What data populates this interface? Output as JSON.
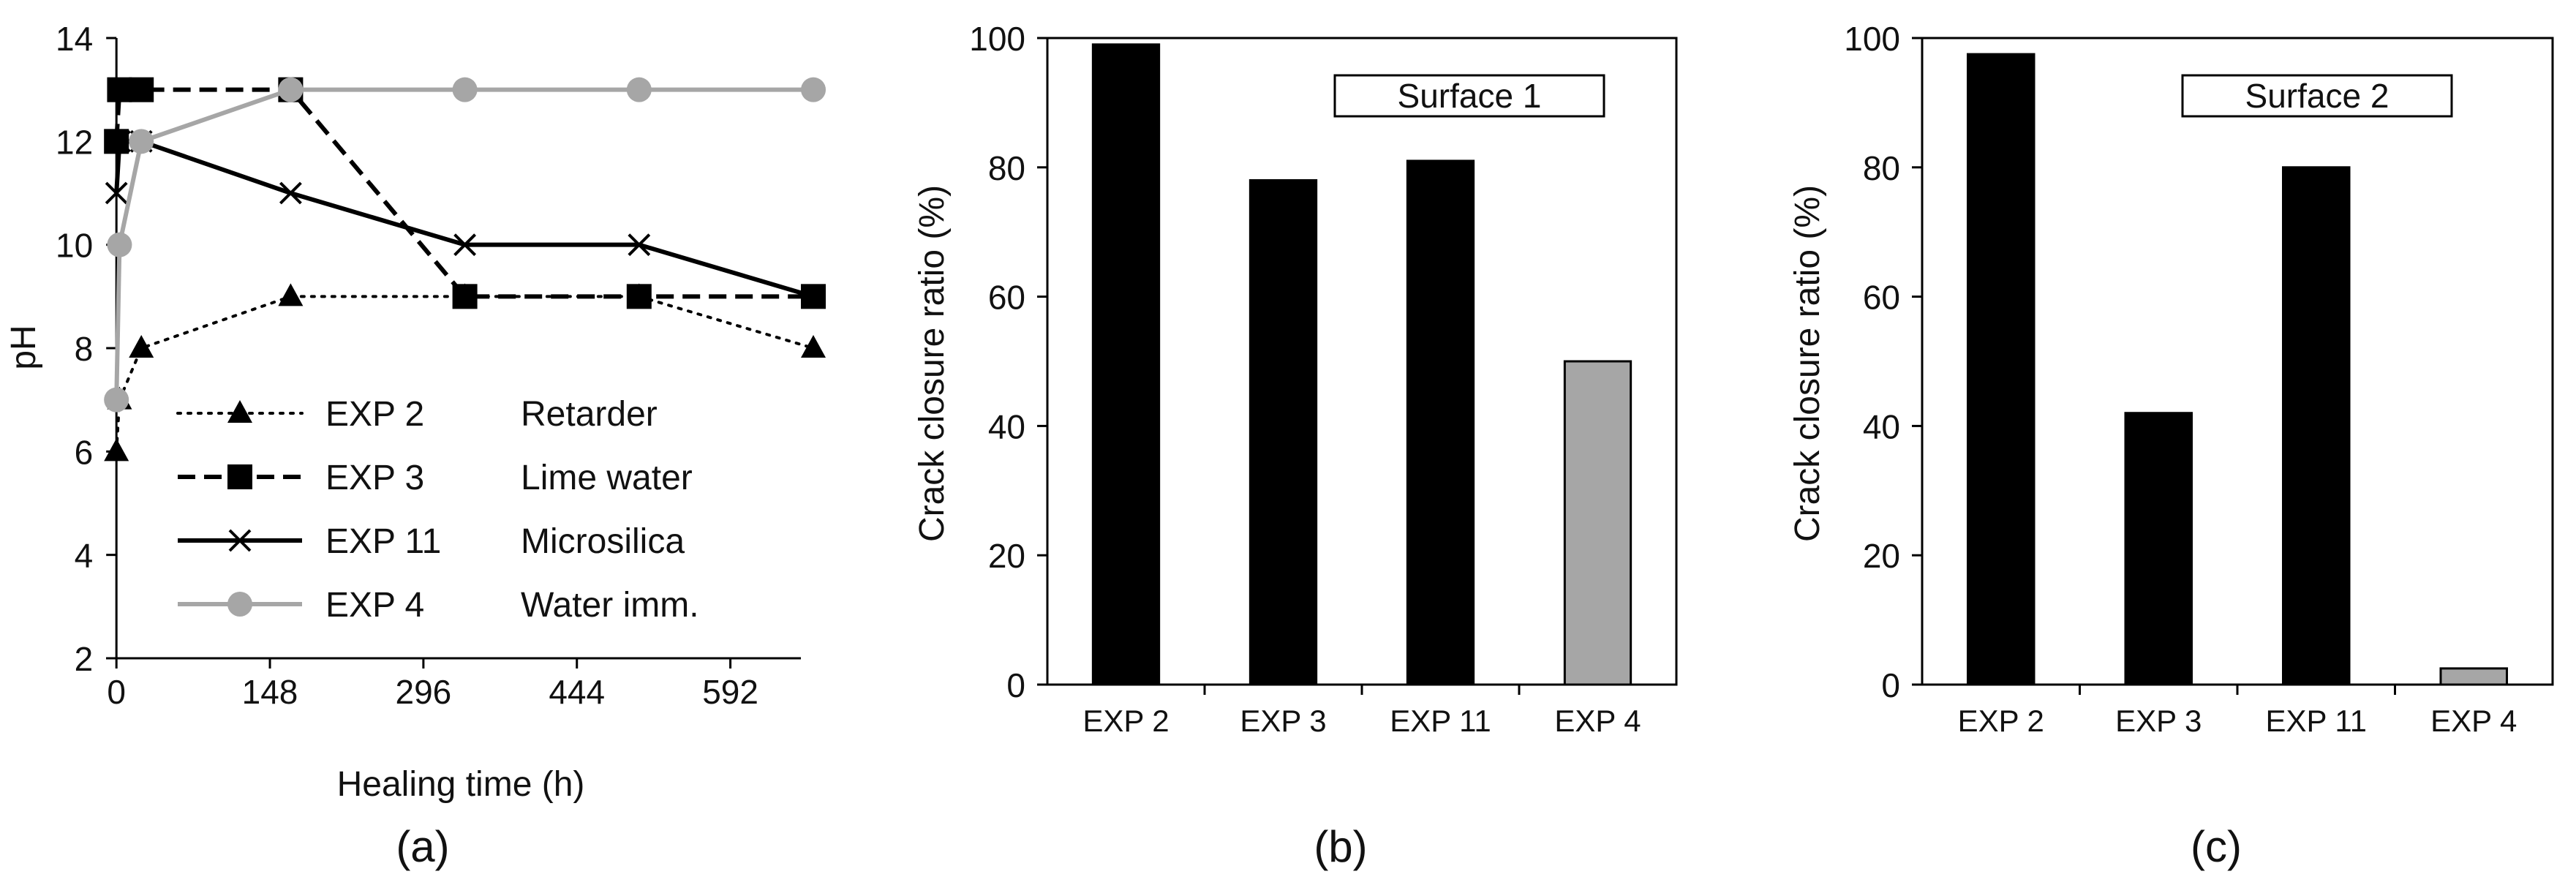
{
  "chart_data": [
    {
      "type": "line",
      "panel_label": "(a)",
      "xlabel": "Healing time (h)",
      "ylabel": "pH",
      "xlim": [
        -10,
        660
      ],
      "ylim": [
        2,
        14
      ],
      "xticks": [
        "0",
        "148",
        "296",
        "444",
        "592"
      ],
      "xtick_values": [
        0,
        148,
        296,
        444,
        592
      ],
      "yticks": [
        "2",
        "4",
        "6",
        "8",
        "10",
        "12",
        "14"
      ],
      "ytick_values": [
        2,
        4,
        6,
        8,
        10,
        12,
        14
      ],
      "grid": false,
      "legend_position": "bottom-left",
      "series": [
        {
          "name": "EXP 2",
          "description": "Retarder",
          "color": "#000000",
          "line": "dotted",
          "marker": "triangle",
          "x": [
            0,
            3,
            24,
            168,
            336,
            504,
            672
          ],
          "y": [
            6,
            7,
            8,
            9,
            9,
            9,
            8
          ]
        },
        {
          "name": "EXP 3",
          "description": "Lime water",
          "color": "#000000",
          "line": "dashed",
          "marker": "square",
          "x": [
            0,
            3,
            24,
            168,
            336,
            504,
            672
          ],
          "y": [
            12,
            13,
            13,
            13,
            9,
            9,
            9
          ]
        },
        {
          "name": "EXP 11",
          "description": "Microsilica",
          "color": "#000000",
          "line": "solid",
          "marker": "x",
          "x": [
            0,
            3,
            24,
            168,
            336,
            504,
            672
          ],
          "y": [
            11,
            12,
            12,
            11,
            10,
            10,
            9
          ]
        },
        {
          "name": "EXP 4",
          "description": "Water imm.",
          "color": "#a6a6a6",
          "line": "solid",
          "marker": "circle",
          "x": [
            0,
            3,
            24,
            168,
            336,
            504,
            672
          ],
          "y": [
            7,
            10,
            12,
            13,
            13,
            13,
            13
          ]
        }
      ]
    },
    {
      "type": "bar",
      "panel_label": "(b)",
      "annotation": "Surface 1",
      "ylabel": "Crack closure ratio (%)",
      "ylim": [
        0,
        100
      ],
      "yticks": [
        "0",
        "20",
        "40",
        "60",
        "80",
        "100"
      ],
      "ytick_values": [
        0,
        20,
        40,
        60,
        80,
        100
      ],
      "categories": [
        "EXP 2",
        "EXP 3",
        "EXP 11",
        "EXP 4"
      ],
      "values": [
        99,
        78,
        81,
        50
      ],
      "colors": [
        "#000000",
        "#000000",
        "#000000",
        "#a6a6a6"
      ]
    },
    {
      "type": "bar",
      "panel_label": "(c)",
      "annotation": "Surface 2",
      "ylabel": "Crack closure ratio (%)",
      "ylim": [
        0,
        100
      ],
      "yticks": [
        "0",
        "20",
        "40",
        "60",
        "80",
        "100"
      ],
      "ytick_values": [
        0,
        20,
        40,
        60,
        80,
        100
      ],
      "categories": [
        "EXP 2",
        "EXP 3",
        "EXP 11",
        "EXP 4"
      ],
      "values": [
        97.5,
        42,
        80,
        2.5
      ],
      "colors": [
        "#000000",
        "#000000",
        "#000000",
        "#a6a6a6"
      ]
    }
  ]
}
